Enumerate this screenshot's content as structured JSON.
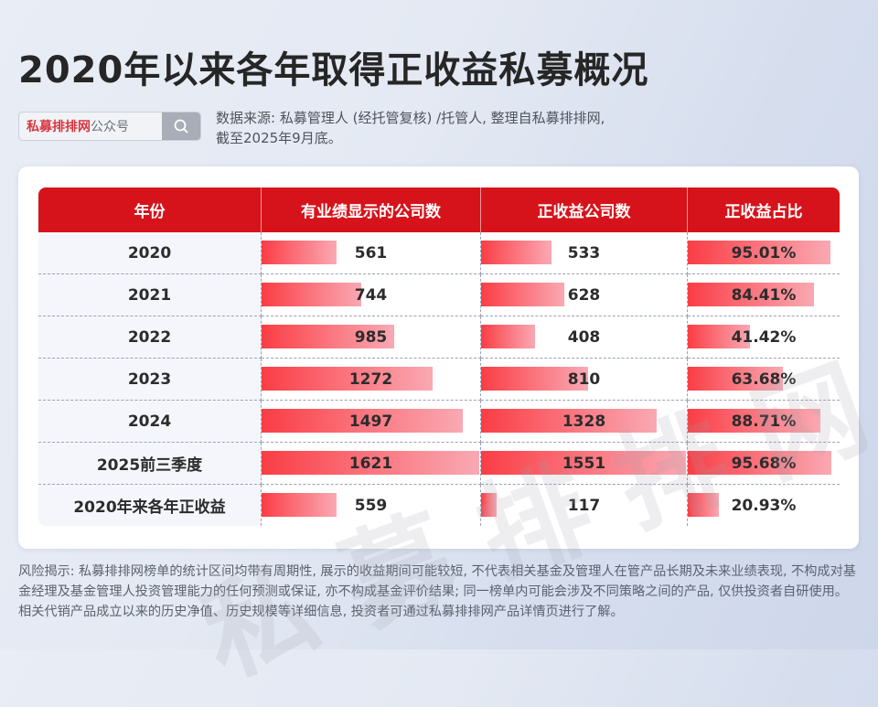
{
  "title": "2020年以来各年取得正收益私募概况",
  "search": {
    "brand": "私募排排网",
    "suffix": "公众号",
    "icon": "search-icon"
  },
  "source_note": {
    "line1": "数据来源: 私募管理人 (经托管复核) /托管人, 整理自私募排排网,",
    "line2": "截至2025年9月底。"
  },
  "watermark": "私募排排网",
  "table": {
    "headers": [
      "年份",
      "有业绩显示的公司数",
      "正收益公司数",
      "正收益占比"
    ],
    "rows": [
      {
        "year": "2020",
        "with_perf": "561",
        "positive": "533",
        "ratio": "95.01%"
      },
      {
        "year": "2021",
        "with_perf": "744",
        "positive": "628",
        "ratio": "84.41%"
      },
      {
        "year": "2022",
        "with_perf": "985",
        "positive": "408",
        "ratio": "41.42%"
      },
      {
        "year": "2023",
        "with_perf": "1272",
        "positive": "810",
        "ratio": "63.68%"
      },
      {
        "year": "2024",
        "with_perf": "1497",
        "positive": "1328",
        "ratio": "88.71%"
      },
      {
        "year": "2025前三季度",
        "with_perf": "1621",
        "positive": "1551",
        "ratio": "95.68%"
      },
      {
        "year": "2020年来各年正收益",
        "with_perf": "559",
        "positive": "117",
        "ratio": "20.93%"
      }
    ]
  },
  "disclaimer": "风险揭示: 私募排排网榜单的统计区间均带有周期性, 展示的收益期间可能较短, 不代表相关基金及管理人在管产品长期及未来业绩表现, 不构成对基金经理及基金管理人投资管理能力的任何预测或保证, 亦不构成基金评价结果; 同一榜单内可能会涉及不同策略之间的产品, 仅供投资者自研使用。相关代销产品成立以来的历史净值、历史规模等详细信息, 投资者可通过私募排排网产品详情页进行了解。",
  "colors": {
    "header_red": "#d6131b",
    "bar_start": "#fa3d45",
    "bar_end": "#f9a9b3",
    "brand_red": "#d8363e"
  },
  "chart_data": {
    "type": "table",
    "title": "2020年以来各年取得正收益私募概况",
    "subtitle": "数据来源: 私募管理人 (经托管复核) /托管人, 整理自私募排排网, 截至2025年9月底。",
    "categories": [
      "2020",
      "2021",
      "2022",
      "2023",
      "2024",
      "2025前三季度",
      "2020年来各年正收益"
    ],
    "series": [
      {
        "name": "有业绩显示的公司数",
        "values": [
          561,
          744,
          985,
          1272,
          1497,
          1621,
          559
        ]
      },
      {
        "name": "正收益公司数",
        "values": [
          533,
          628,
          408,
          810,
          1328,
          1551,
          117
        ]
      },
      {
        "name": "正收益占比",
        "values": [
          95.01,
          84.41,
          41.42,
          63.68,
          88.71,
          95.68,
          20.93
        ],
        "unit": "%"
      }
    ],
    "bar_max": {
      "with_perf": 1621,
      "positive": 1551,
      "ratio": 100
    }
  }
}
